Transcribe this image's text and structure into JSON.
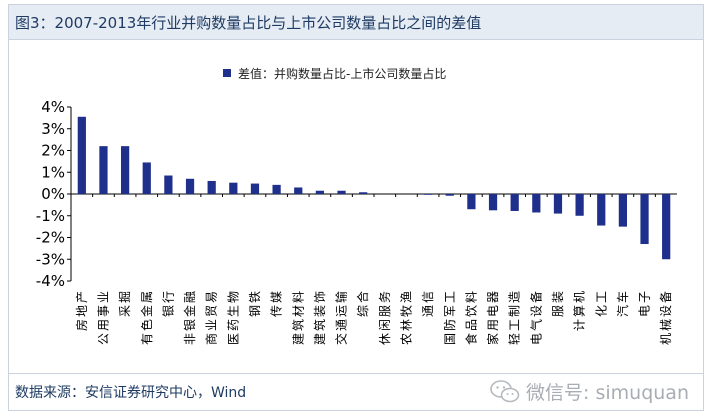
{
  "header": {
    "title": "图3：2007-2013年行业并购数量占比与上市公司数量占比之间的差值"
  },
  "footer": {
    "source": "数据来源：安信证券研究中心，Wind",
    "watermark": "微信号: simuquan",
    "watermark_icon": "wechat-icon"
  },
  "colors": {
    "bar": "#1f2f8c",
    "title_bg": "#e6ecf4",
    "title_text": "#1f3b63"
  },
  "chart_data": {
    "type": "bar",
    "title": "",
    "xlabel": "",
    "ylabel": "",
    "ylim": [
      -0.04,
      0.04
    ],
    "y_ticks": [
      0.04,
      0.03,
      0.02,
      0.01,
      0,
      -0.01,
      -0.02,
      -0.03,
      -0.04
    ],
    "y_tick_labels": [
      "4%",
      "3%",
      "2%",
      "1%",
      "0%",
      "-1%",
      "-2%",
      "-3%",
      "-4%"
    ],
    "legend_position": "top-center",
    "grid": false,
    "categories": [
      "房地产",
      "公用事业",
      "采掘",
      "有色金属",
      "银行",
      "非银金融",
      "商业贸易",
      "医药生物",
      "钢铁",
      "传媒",
      "建筑材料",
      "建筑装饰",
      "交通运输",
      "综合",
      "休闲服务",
      "农林牧渔",
      "通信",
      "国防军工",
      "食品饮料",
      "家用电器",
      "轻工制造",
      "电气设备",
      "服装",
      "计算机",
      "化工",
      "汽车",
      "电子",
      "机械设备"
    ],
    "series": [
      {
        "name": "差值：并购数量占比-上市公司数量占比",
        "values": [
          0.0355,
          0.022,
          0.022,
          0.0145,
          0.0085,
          0.007,
          0.006,
          0.0052,
          0.0048,
          0.0042,
          0.003,
          0.0015,
          0.0015,
          0.0008,
          0.0,
          0.0,
          -0.0003,
          -0.0008,
          -0.007,
          -0.0075,
          -0.0078,
          -0.0085,
          -0.009,
          -0.01,
          -0.0145,
          -0.015,
          -0.023,
          -0.03
        ]
      }
    ]
  }
}
